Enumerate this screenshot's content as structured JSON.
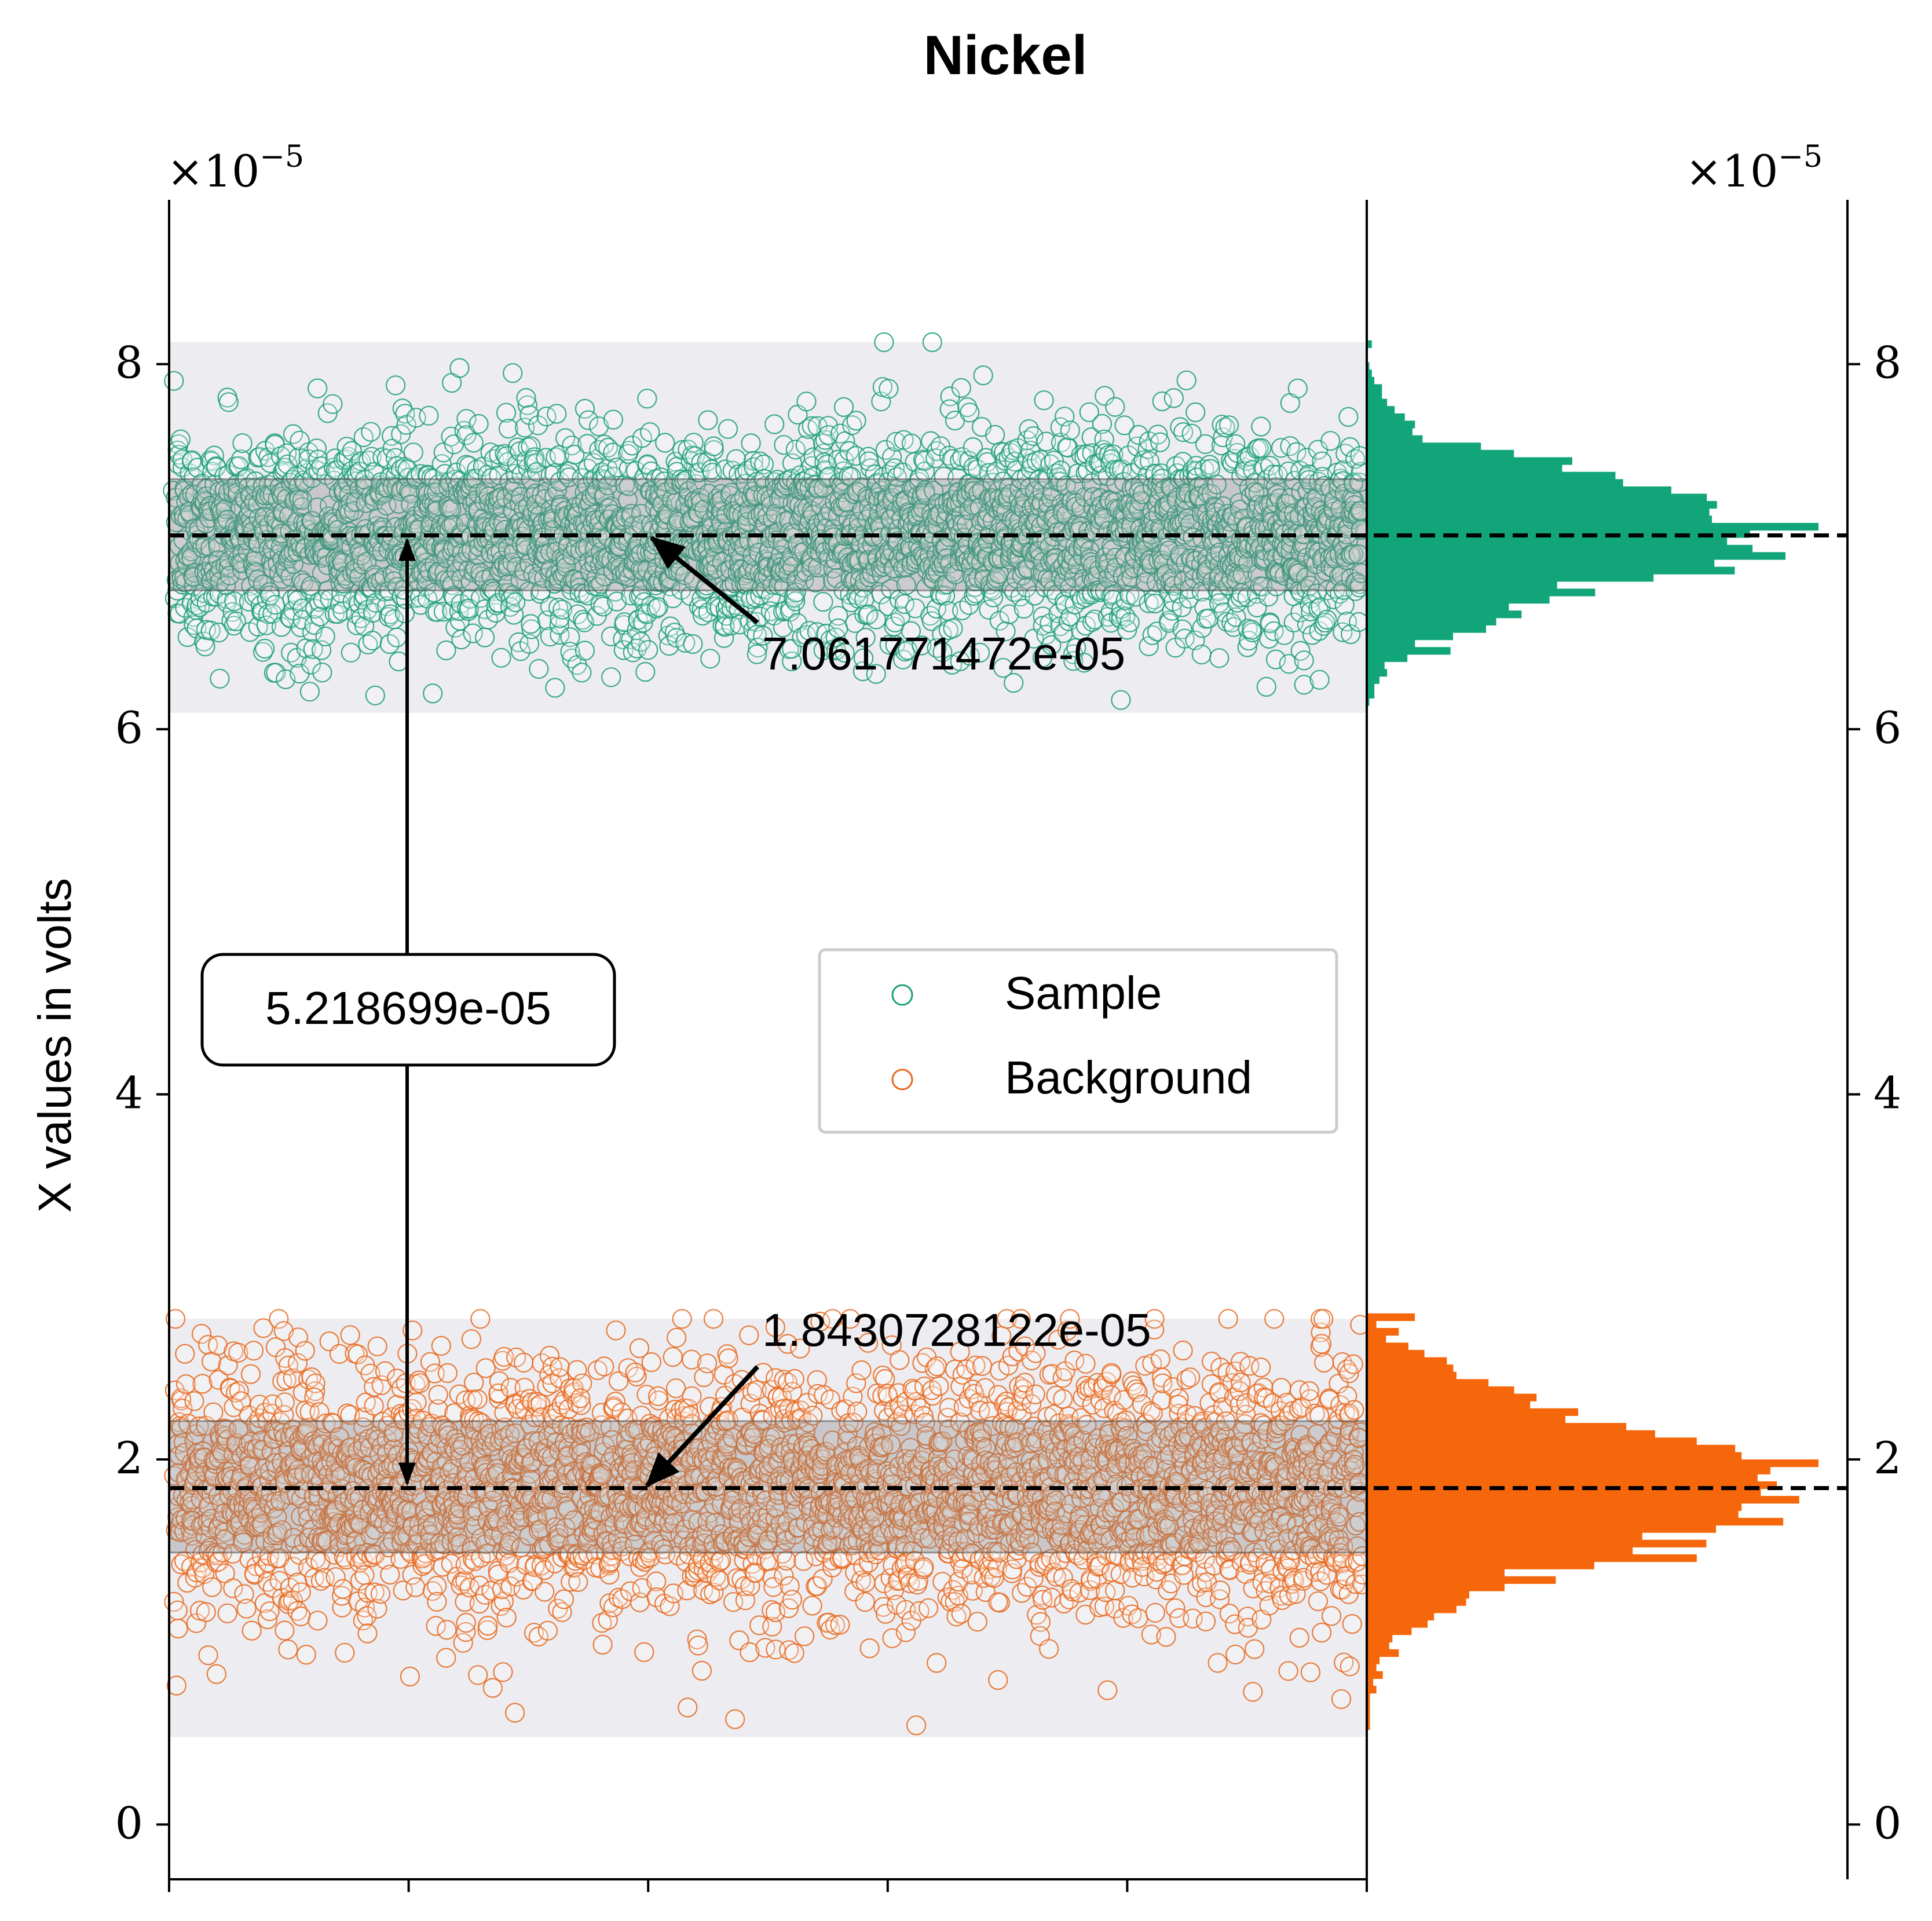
{
  "chart_data": {
    "type": "scatter",
    "title": "Nickel",
    "xlabel": "",
    "ylabel": "X values in volts",
    "offset_label": "×10",
    "offset_exponent": "−5",
    "ylim": [
      -0.3,
      8.9
    ],
    "y_ticks": [
      0,
      2,
      4,
      6,
      8
    ],
    "y_tick_labels": [
      "0",
      "2",
      "4",
      "6",
      "8"
    ],
    "x_ticks": [
      0,
      1,
      2,
      3,
      4,
      5
    ],
    "x_tick_labels": [
      "",
      "",
      "",
      "",
      "",
      ""
    ],
    "xlim": [
      0,
      5
    ],
    "grid": false,
    "legend_position": "center-right",
    "series": [
      {
        "name": "Sample",
        "color": "#1b9e77",
        "mean": 7.061771472,
        "std_band": [
          6.76,
          7.37
        ],
        "range_band": [
          6.09,
          8.12
        ],
        "label": "7.061771472e-05",
        "points_count": 3000
      },
      {
        "name": "Background",
        "color": "#e8671b",
        "mean": 1.8430728122,
        "std_band": [
          1.49,
          2.21
        ],
        "range_band": [
          0.48,
          2.77
        ],
        "label": "1.8430728122e-05",
        "points_count": 3000
      }
    ],
    "difference_label": "5.218699e-05",
    "histogram_colors": [
      "#11a579",
      "#f5670a"
    ]
  }
}
